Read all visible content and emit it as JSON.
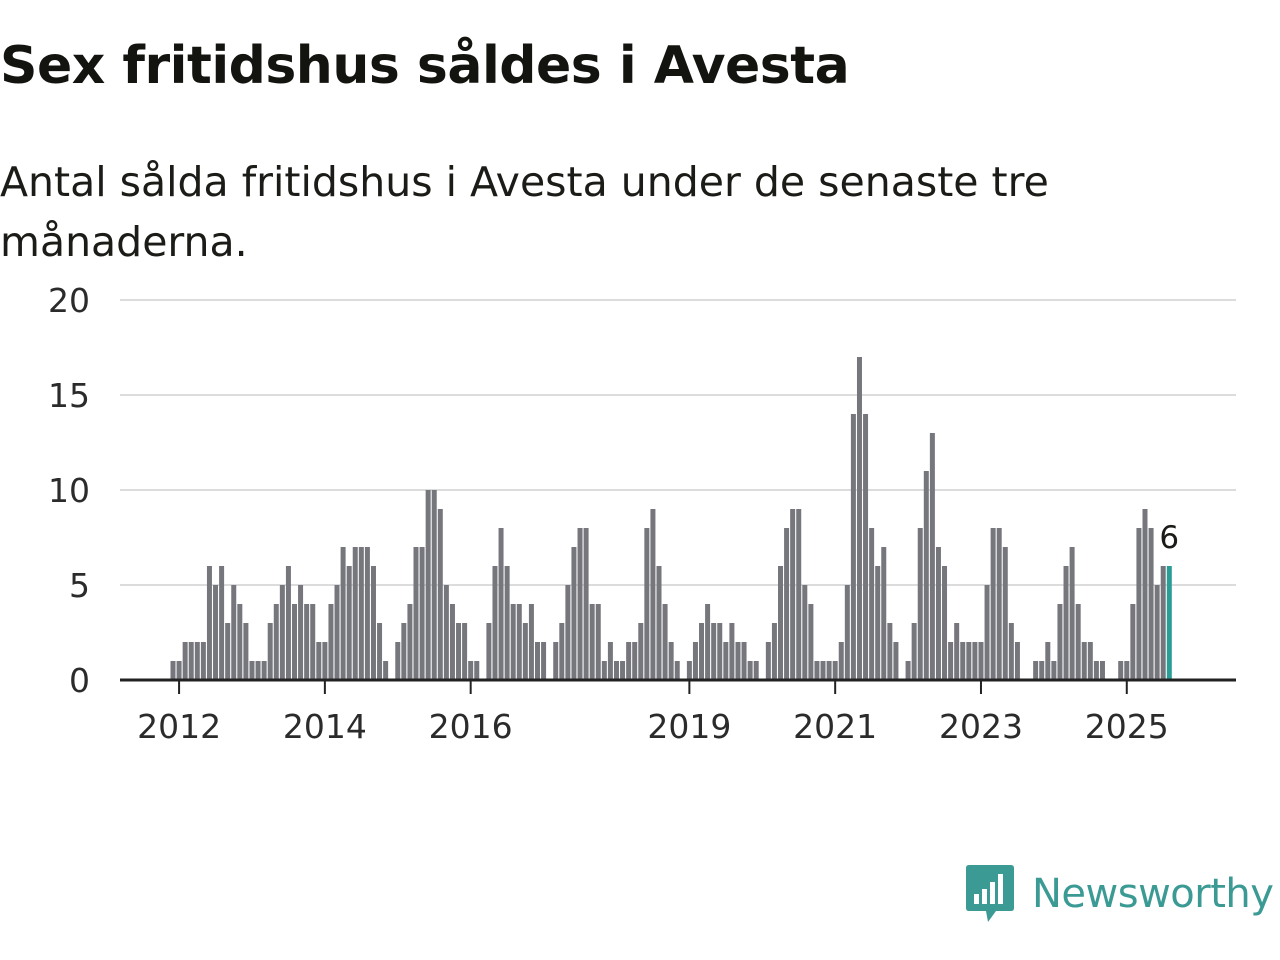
{
  "header": {
    "title": "Sex fritidshus såldes i Avesta",
    "subtitle": "Antal sålda fritidshus i Avesta under de senaste tre månaderna."
  },
  "brand": {
    "name": "Newsworthy",
    "logo_icon": "bar-chart-speech-bubble-icon",
    "color": "#3b9a94"
  },
  "colors": {
    "bar": "#76767d",
    "highlight": "#2a9d96",
    "grid": "#dcdcdc",
    "axis": "#222222"
  },
  "chart_data": {
    "type": "bar",
    "title": "Sex fritidshus såldes i Avesta",
    "subtitle": "Antal sålda fritidshus i Avesta under de senaste tre månaderna.",
    "xlabel": "",
    "ylabel": "",
    "ylim": [
      0,
      20
    ],
    "yticks": [
      0,
      5,
      10,
      15,
      20
    ],
    "grid": true,
    "xticks": [
      "2012",
      "2014",
      "2016",
      "2019",
      "2021",
      "2023",
      "2025"
    ],
    "start_month": "2011-12",
    "last_value_label": "6",
    "series": [
      {
        "name": "Antal sålda fritidshus",
        "values": [
          1,
          1,
          2,
          2,
          2,
          2,
          6,
          5,
          6,
          3,
          5,
          4,
          3,
          1,
          1,
          1,
          3,
          4,
          5,
          6,
          4,
          5,
          4,
          4,
          2,
          2,
          4,
          5,
          7,
          6,
          7,
          7,
          7,
          6,
          3,
          1,
          0,
          2,
          3,
          4,
          7,
          7,
          10,
          10,
          9,
          5,
          4,
          3,
          3,
          1,
          1,
          0,
          3,
          6,
          8,
          6,
          4,
          4,
          3,
          4,
          2,
          2,
          0,
          2,
          3,
          5,
          7,
          8,
          8,
          4,
          4,
          1,
          2,
          1,
          1,
          2,
          2,
          3,
          8,
          9,
          6,
          4,
          2,
          1,
          0,
          1,
          2,
          3,
          4,
          3,
          3,
          2,
          3,
          2,
          2,
          1,
          1,
          0,
          2,
          3,
          6,
          8,
          9,
          9,
          5,
          4,
          1,
          1,
          1,
          1,
          2,
          5,
          14,
          17,
          14,
          8,
          6,
          7,
          3,
          2,
          0,
          1,
          3,
          8,
          11,
          13,
          7,
          6,
          2,
          3,
          2,
          2,
          2,
          2,
          5,
          8,
          8,
          7,
          3,
          2,
          0,
          0,
          1,
          1,
          2,
          1,
          4,
          6,
          7,
          4,
          2,
          2,
          1,
          1,
          0,
          0,
          1,
          1,
          4,
          8,
          9,
          8,
          5,
          6,
          6
        ]
      }
    ]
  }
}
